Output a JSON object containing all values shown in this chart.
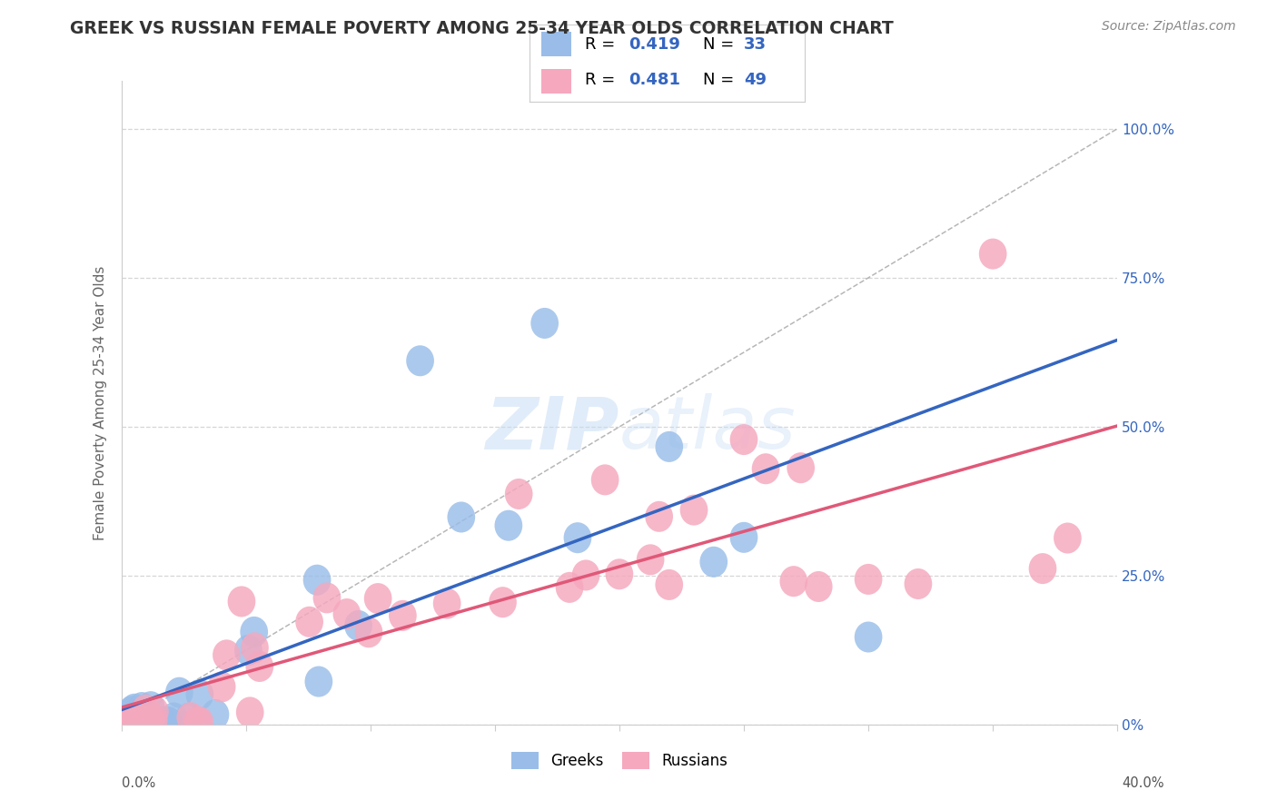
{
  "title": "GREEK VS RUSSIAN FEMALE POVERTY AMONG 25-34 YEAR OLDS CORRELATION CHART",
  "source": "Source: ZipAtlas.com",
  "ylabel": "Female Poverty Among 25-34 Year Olds",
  "ytick_values": [
    0.0,
    0.25,
    0.5,
    0.75,
    1.0
  ],
  "ytick_labels_right": [
    "0%",
    "25.0%",
    "50.0%",
    "75.0%",
    "100.0%"
  ],
  "xlim": [
    0.0,
    0.4
  ],
  "ylim": [
    0.0,
    1.08
  ],
  "greek_R": 0.419,
  "greek_N": 33,
  "russian_R": 0.481,
  "russian_N": 49,
  "greek_color": "#99bde8",
  "russian_color": "#f5a8be",
  "greek_line_color": "#3465c0",
  "russian_line_color": "#e05878",
  "diagonal_color": "#aaaaaa",
  "legend_color": "#3465c0",
  "watermark_color": "#c8ddf5",
  "grid_color": "#cccccc",
  "spine_color": "#cccccc",
  "title_color": "#333333",
  "source_color": "#888888",
  "ylabel_color": "#666666"
}
